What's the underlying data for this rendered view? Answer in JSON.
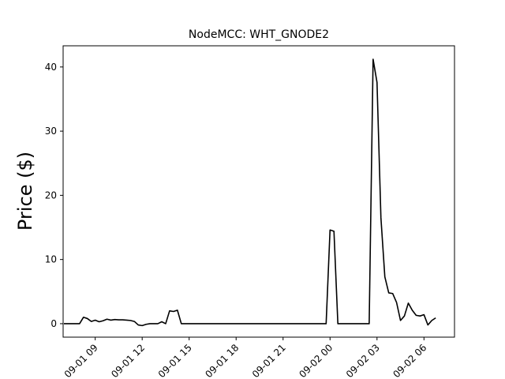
{
  "chart_data": {
    "type": "line",
    "title": "NodeMCC: WHT_GNODE2",
    "xlabel": "",
    "ylabel": "Price ($)",
    "ylim": [
      -2.1,
      43.3
    ],
    "yticks": [
      0,
      10,
      20,
      30,
      40
    ],
    "xticks": [
      {
        "label": "09-01 09",
        "hours": 9
      },
      {
        "label": "09-01 12",
        "hours": 12
      },
      {
        "label": "09-01 15",
        "hours": 15
      },
      {
        "label": "09-01 18",
        "hours": 18
      },
      {
        "label": "09-01 21",
        "hours": 21
      },
      {
        "label": "09-02 00",
        "hours": 24
      },
      {
        "label": "09-02 03",
        "hours": 27
      },
      {
        "label": "09-02 06",
        "hours": 30
      }
    ],
    "xlim_hours": [
      6.95,
      31.95
    ],
    "grid": false,
    "legend": "none",
    "series": [
      {
        "color": "#000000",
        "x_hours": [
          7.0,
          8.0,
          8.25,
          8.5,
          8.75,
          9.0,
          9.25,
          9.5,
          9.75,
          10.0,
          10.25,
          10.5,
          10.75,
          11.0,
          11.25,
          11.5,
          11.75,
          12.0,
          12.25,
          12.5,
          12.75,
          13.0,
          13.25,
          13.5,
          13.75,
          14.0,
          14.25,
          14.5,
          14.75,
          15.0,
          23.75,
          24.0,
          24.25,
          24.5,
          26.5,
          26.75,
          27.0,
          27.25,
          27.5,
          27.75,
          28.0,
          28.25,
          28.5,
          28.75,
          29.0,
          29.25,
          29.5,
          29.75,
          30.0,
          30.25,
          30.5,
          30.75
        ],
        "values": [
          0.0,
          0.0,
          1.0,
          0.8,
          0.35,
          0.55,
          0.3,
          0.45,
          0.7,
          0.55,
          0.65,
          0.6,
          0.6,
          0.55,
          0.5,
          0.35,
          -0.2,
          -0.3,
          -0.1,
          0.0,
          0.0,
          0.0,
          0.3,
          0.0,
          2.0,
          1.9,
          2.1,
          0.0,
          0.0,
          0.0,
          0.0,
          14.6,
          14.4,
          0.0,
          0.0,
          41.2,
          37.6,
          16.5,
          7.3,
          4.8,
          4.7,
          3.3,
          0.5,
          1.2,
          3.2,
          2.1,
          1.3,
          1.2,
          1.4,
          -0.2,
          0.5,
          0.9
        ]
      }
    ]
  }
}
